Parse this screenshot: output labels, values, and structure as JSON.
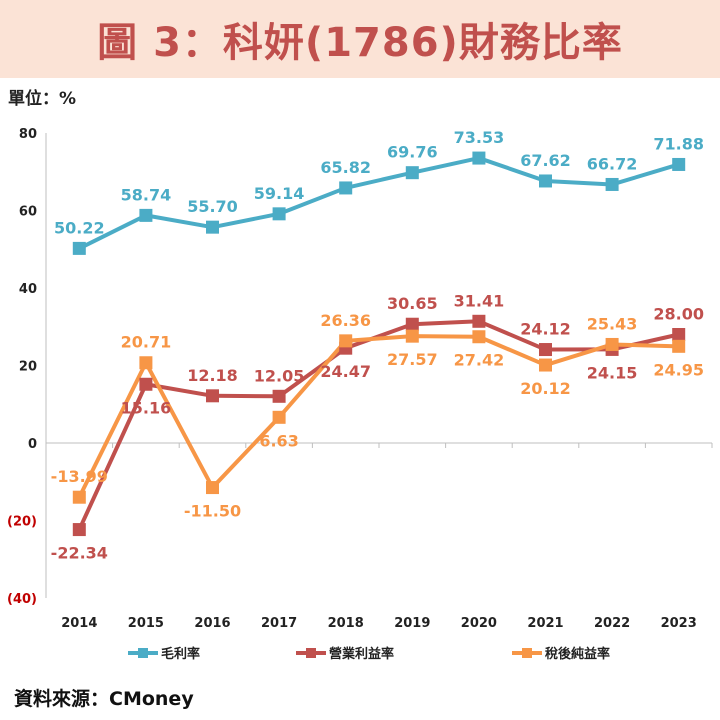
{
  "title": "圖 3：科妍(1786)財務比率",
  "unit_label": "單位：%",
  "source": "資料來源：CMoney",
  "chart_data": {
    "type": "line",
    "categories": [
      "2014",
      "2015",
      "2016",
      "2017",
      "2018",
      "2019",
      "2020",
      "2021",
      "2022",
      "2023"
    ],
    "ylim": [
      -40,
      80
    ],
    "y_ticks": [
      {
        "value": 80,
        "label": "80",
        "color": "#222222"
      },
      {
        "value": 60,
        "label": "60",
        "color": "#222222"
      },
      {
        "value": 40,
        "label": "40",
        "color": "#222222"
      },
      {
        "value": 20,
        "label": "20",
        "color": "#222222"
      },
      {
        "value": 0,
        "label": "0",
        "color": "#222222"
      },
      {
        "value": -20,
        "label": "(20)",
        "color": "#c00000"
      },
      {
        "value": -40,
        "label": "(40)",
        "color": "#c00000"
      }
    ],
    "grid": false,
    "legend_position": "bottom",
    "series": [
      {
        "name": "毛利率",
        "color": "#4bacc6",
        "values": [
          50.22,
          58.74,
          55.7,
          59.14,
          65.82,
          69.76,
          73.53,
          67.62,
          66.72,
          71.88
        ],
        "labels": [
          "50.22",
          "58.74",
          "55.70",
          "59.14",
          "65.82",
          "69.76",
          "73.53",
          "67.62",
          "66.72",
          "71.88"
        ],
        "label_pos": [
          "above",
          "above",
          "above",
          "above",
          "above",
          "above",
          "above",
          "above",
          "above",
          "above"
        ]
      },
      {
        "name": "營業利益率",
        "color": "#c0504d",
        "values": [
          -22.34,
          15.16,
          12.18,
          12.05,
          24.47,
          30.65,
          31.41,
          24.12,
          24.15,
          28.0
        ],
        "labels": [
          "-22.34",
          "15.16",
          "12.18",
          "12.05",
          "24.47",
          "30.65",
          "31.41",
          "24.12",
          "24.15",
          "28.00"
        ],
        "label_pos": [
          "below",
          "below",
          "above",
          "above",
          "below",
          "above",
          "above",
          "above",
          "below",
          "above"
        ]
      },
      {
        "name": "稅後純益率",
        "color": "#f79646",
        "values": [
          -13.99,
          20.71,
          -11.5,
          6.63,
          26.36,
          27.57,
          27.42,
          20.12,
          25.43,
          24.95
        ],
        "labels": [
          "-13.99",
          "20.71",
          "-11.50",
          "6.63",
          "26.36",
          "27.57",
          "27.42",
          "20.12",
          "25.43",
          "24.95"
        ],
        "label_pos": [
          "above",
          "above",
          "below",
          "below",
          "above",
          "below",
          "below",
          "below",
          "above",
          "below"
        ]
      }
    ]
  }
}
